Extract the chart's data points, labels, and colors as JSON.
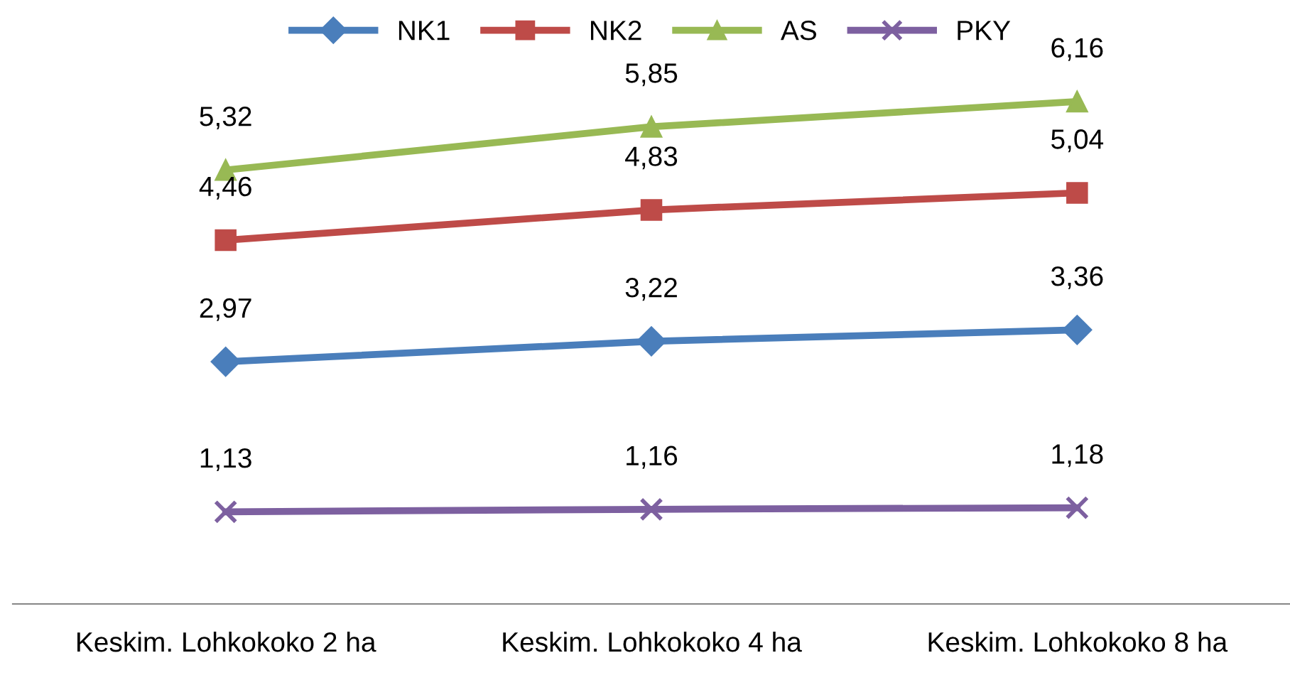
{
  "chart_data": {
    "type": "line",
    "categories": [
      "Keskim. Lohkokoko 2 ha",
      "Keskim. Lohkokoko 4 ha",
      "Keskim. Lohkokoko 8 ha"
    ],
    "legend": "top",
    "grid": false,
    "series": [
      {
        "name": "NK1",
        "color": "#4a7ebb",
        "marker": "diamond",
        "values": [
          2.97,
          3.22,
          3.36
        ],
        "value_labels": [
          "2,97",
          "3,22",
          "3,36"
        ]
      },
      {
        "name": "NK2",
        "color": "#be4b48",
        "marker": "square",
        "values": [
          4.46,
          4.83,
          5.04
        ],
        "value_labels": [
          "4,46",
          "4,83",
          "5,04"
        ]
      },
      {
        "name": "AS",
        "color": "#98b954",
        "marker": "triangle",
        "values": [
          5.32,
          5.85,
          6.16
        ],
        "value_labels": [
          "5,32",
          "5,85",
          "6,16"
        ]
      },
      {
        "name": "PKY",
        "color": "#7d60a0",
        "marker": "cross",
        "values": [
          1.13,
          1.16,
          1.18
        ],
        "value_labels": [
          "1,13",
          "1,16",
          "1,18"
        ]
      }
    ]
  }
}
